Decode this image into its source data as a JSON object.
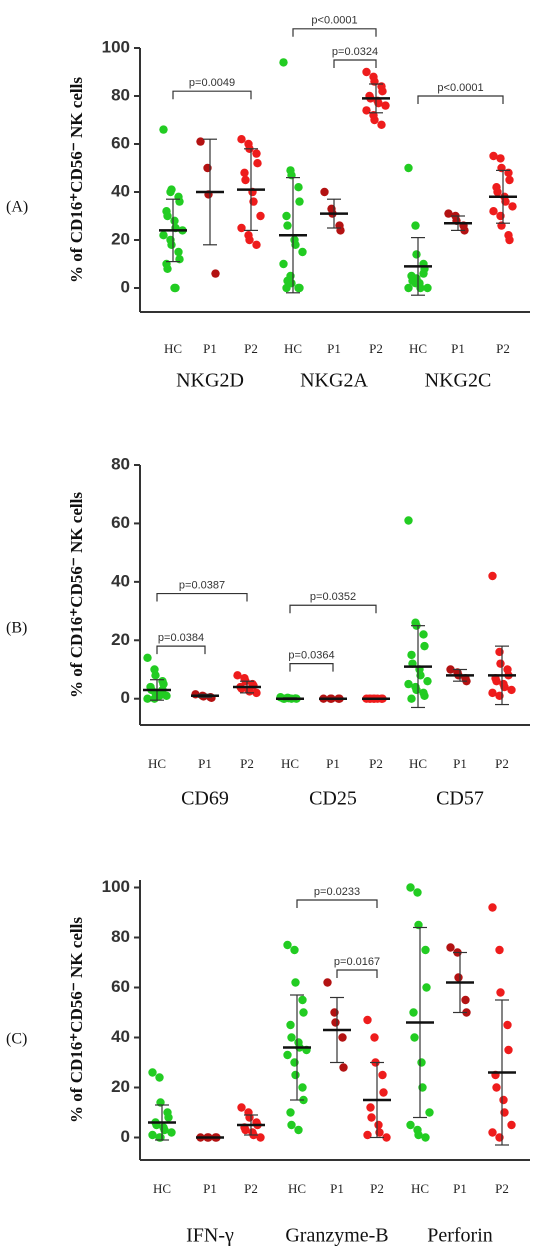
{
  "chart_data": [
    {
      "type": "dot",
      "panel": "(A)",
      "ylabel": "% of CD16⁺CD56⁻ NK cells",
      "ylim": [
        -10,
        100
      ],
      "yticks": [
        0,
        20,
        40,
        60,
        80,
        100
      ],
      "categories": [
        "HC",
        "P1",
        "P2",
        "HC",
        "P1",
        "P2",
        "HC",
        "P1",
        "P2"
      ],
      "group_labels": [
        "NKG2D",
        "NKG2A",
        "NKG2C"
      ],
      "colors": [
        "#22cc22",
        "#b31212",
        "#ee1c1c"
      ],
      "points": [
        [
          66,
          40,
          41,
          38,
          36,
          32,
          30,
          28,
          25,
          24,
          22,
          20,
          18,
          15,
          12,
          10,
          8,
          0,
          0
        ],
        [
          61,
          50,
          39,
          6
        ],
        [
          62,
          60,
          58,
          56,
          52,
          48,
          45,
          40,
          36,
          30,
          25,
          22,
          20,
          18
        ],
        [
          94,
          49,
          47,
          42,
          36,
          30,
          26,
          20,
          18,
          15,
          10,
          5,
          2,
          0,
          0,
          0,
          3
        ],
        [
          40,
          33,
          31,
          26,
          24
        ],
        [
          90,
          88,
          86,
          84,
          82,
          80,
          79,
          78,
          77,
          76,
          74,
          72,
          70,
          68
        ],
        [
          50,
          26,
          14,
          10,
          8,
          5,
          3,
          2,
          0,
          0,
          0,
          2,
          4,
          6
        ],
        [
          31,
          30,
          28,
          26,
          24
        ],
        [
          55,
          54,
          50,
          48,
          45,
          42,
          40,
          38,
          36,
          34,
          32,
          30,
          26,
          22,
          20
        ]
      ],
      "means": [
        24,
        40,
        41,
        22,
        31,
        79,
        9,
        27,
        38
      ],
      "sd": [
        13,
        22,
        17,
        24,
        6,
        6,
        12,
        3,
        11
      ],
      "annotations": [
        {
          "label": "p=0.0049",
          "from": 0,
          "to": 2,
          "y": 82
        },
        {
          "label": "p<0.0001",
          "from": 3,
          "to": 5,
          "y": 108
        },
        {
          "label": "p=0.0324",
          "from": 4,
          "to": 5,
          "y": 95
        },
        {
          "label": "p<0.0001",
          "from": 6,
          "to": 8,
          "y": 80
        }
      ]
    },
    {
      "type": "dot",
      "panel": "(B)",
      "ylabel": "% of CD16⁺CD56⁻ NK cells",
      "ylim": [
        -9,
        80
      ],
      "yticks": [
        0,
        20,
        40,
        60,
        80
      ],
      "categories": [
        "HC",
        "P1",
        "P2",
        "HC",
        "P1",
        "P2",
        "HC",
        "P1",
        "P2"
      ],
      "group_labels": [
        "CD69",
        "CD25",
        "CD57"
      ],
      "colors": [
        "#22cc22",
        "#b31212",
        "#ee1c1c"
      ],
      "points": [
        [
          14,
          10,
          8,
          6,
          5,
          4,
          3,
          2,
          1,
          1,
          0,
          0,
          2,
          3
        ],
        [
          1.5,
          1,
          0.8,
          0.5,
          0.3
        ],
        [
          8,
          7,
          6,
          5,
          4.5,
          4,
          3.5,
          3,
          2.5,
          2
        ],
        [
          0.5,
          0.3,
          0.2,
          0.1,
          0,
          0,
          0,
          0
        ],
        [
          0,
          0,
          0,
          0,
          0
        ],
        [
          0,
          0,
          0,
          0,
          0,
          0,
          0,
          0
        ],
        [
          61,
          26,
          25,
          22,
          18,
          15,
          12,
          10,
          8,
          6,
          5,
          4,
          3,
          2,
          1,
          0
        ],
        [
          10,
          9,
          8,
          7,
          6
        ],
        [
          42,
          16,
          12,
          10,
          8,
          7,
          6,
          5,
          4,
          3,
          2,
          1
        ]
      ],
      "means": [
        3,
        1,
        4,
        0,
        0,
        0,
        11,
        8,
        8
      ],
      "sd": [
        3.5,
        0.5,
        2,
        0.3,
        0,
        0,
        14,
        2,
        10
      ],
      "annotations": [
        {
          "label": "p=0.0384",
          "from": 0,
          "to": 1,
          "y": 18
        },
        {
          "label": "p=0.0387",
          "from": 0,
          "to": 2,
          "y": 36
        },
        {
          "label": "p=0.0364",
          "from": 3,
          "to": 4,
          "y": 12
        },
        {
          "label": "p=0.0352",
          "from": 3,
          "to": 5,
          "y": 32
        }
      ]
    },
    {
      "type": "dot",
      "panel": "(C)",
      "ylabel": "% of CD16⁺CD56⁻ NK cells",
      "ylim": [
        -9,
        103
      ],
      "yticks": [
        0,
        20,
        40,
        60,
        80,
        100
      ],
      "categories": [
        "HC",
        "P1",
        "P2",
        "HC",
        "P1",
        "P2",
        "HC",
        "P1",
        "P2"
      ],
      "group_labels": [
        "IFN-γ",
        "Granzyme-B",
        "Perforin"
      ],
      "colors": [
        "#22cc22",
        "#b31212",
        "#ee1c1c"
      ],
      "points": [
        [
          26,
          24,
          14,
          10,
          8,
          6,
          5,
          4,
          3,
          2,
          1,
          0,
          0
        ],
        [
          0,
          0,
          0,
          0,
          0
        ],
        [
          12,
          10,
          8,
          6,
          5,
          4,
          3,
          2,
          1,
          0
        ],
        [
          77,
          75,
          62,
          55,
          50,
          45,
          40,
          38,
          36,
          35,
          33,
          30,
          25,
          20,
          15,
          10,
          5,
          3
        ],
        [
          62,
          50,
          46,
          40,
          28
        ],
        [
          47,
          40,
          30,
          25,
          18,
          12,
          8,
          5,
          2,
          0,
          1
        ],
        [
          100,
          98,
          85,
          75,
          60,
          50,
          40,
          30,
          20,
          10,
          5,
          3,
          1,
          0
        ],
        [
          76,
          74,
          64,
          55,
          50
        ],
        [
          92,
          75,
          58,
          45,
          35,
          25,
          20,
          15,
          10,
          5,
          2,
          0
        ]
      ],
      "means": [
        6,
        0,
        5,
        36,
        43,
        15,
        46,
        62,
        26
      ],
      "sd": [
        7,
        0,
        4,
        21,
        13,
        15,
        38,
        12,
        29
      ],
      "annotations": [
        {
          "label": "p=0.0233",
          "from": 3,
          "to": 5,
          "y": 95
        },
        {
          "label": "p=0.0167",
          "from": 4,
          "to": 5,
          "y": 67
        }
      ]
    }
  ]
}
